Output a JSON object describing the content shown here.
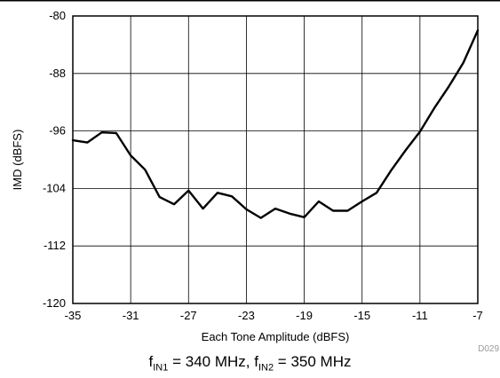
{
  "chart_data": {
    "type": "line",
    "title": "",
    "xlabel": "Each Tone Amplitude (dBFS)",
    "ylabel": "IMD (dBFS)",
    "xlim": [
      -35,
      -7
    ],
    "ylim": [
      -120,
      -80
    ],
    "x_ticks": [
      -35,
      -31,
      -27,
      -23,
      -19,
      -15,
      -11,
      -7
    ],
    "y_ticks": [
      -80,
      -88,
      -96,
      -104,
      -112,
      -120
    ],
    "x_tick_labels": [
      "-35",
      "-31",
      "-27",
      "-23",
      "-19",
      "-15",
      "-11",
      "-7"
    ],
    "y_tick_labels": [
      "-80",
      "-88",
      "-96",
      "-104",
      "-112",
      "-120"
    ],
    "grid": true,
    "series": [
      {
        "color": "#000000",
        "x": [
          -35,
          -34,
          -33,
          -32,
          -31,
          -30,
          -29,
          -28,
          -27,
          -26,
          -25,
          -24,
          -23,
          -22,
          -21,
          -20,
          -19,
          -18,
          -17,
          -16,
          -15,
          -14,
          -13,
          -12,
          -11,
          -10,
          -9,
          -8,
          -7
        ],
        "y": [
          -97.3,
          -97.6,
          -96.2,
          -96.3,
          -99.4,
          -101.4,
          -105.2,
          -106.2,
          -104.3,
          -106.8,
          -104.6,
          -105.1,
          -106.9,
          -108.1,
          -106.8,
          -107.5,
          -108.0,
          -105.8,
          -107.1,
          -107.1,
          -105.8,
          -104.6,
          -101.5,
          -98.7,
          -96.1,
          -92.8,
          -89.8,
          -86.5,
          -82.0
        ]
      }
    ],
    "annotations": [
      "D029"
    ],
    "caption": {
      "f1_prefix": "f",
      "f1_sub": "IN1",
      "f1_value": " = 340 MHz, ",
      "f2_prefix": "f",
      "f2_sub": "IN2",
      "f2_value": " = 350 MHz"
    }
  }
}
